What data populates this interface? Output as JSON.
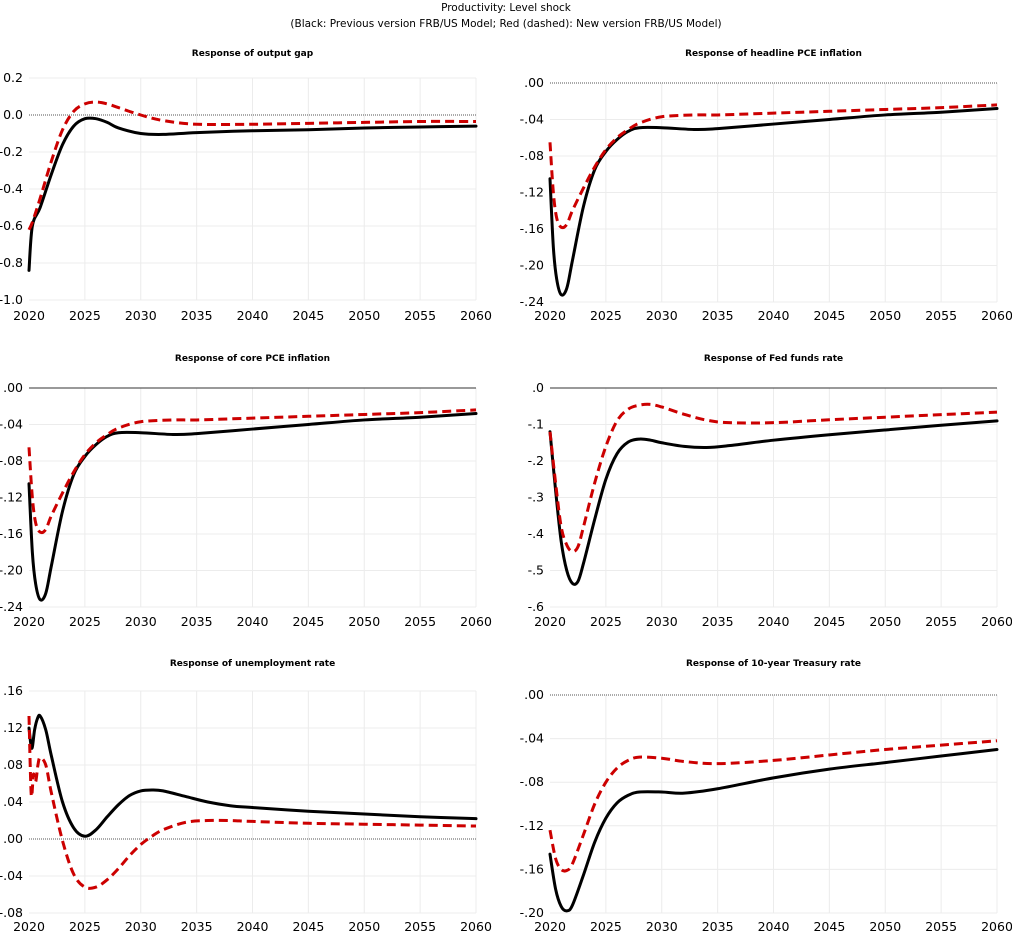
{
  "header": {
    "title": "Productivity: Level shock",
    "subtitle": "(Black: Previous version FRB/US Model; Red (dashed): New version FRB/US Model)"
  },
  "colors": {
    "previous": "#000000",
    "new": "#cc0000"
  },
  "chart_data": [
    {
      "type": "line",
      "title": "Response of output gap",
      "xlabel": "",
      "ylabel": "",
      "xlim": [
        2020,
        2060
      ],
      "ylim": [
        -1.0,
        0.2
      ],
      "xticks": [
        2020,
        2025,
        2030,
        2035,
        2040,
        2045,
        2050,
        2055,
        2060
      ],
      "yticks": [
        0.2,
        0.0,
        -0.2,
        -0.4,
        -0.6,
        -0.8,
        -1.0
      ],
      "ytick_labels": [
        "0.2",
        "0.0",
        "-0.2",
        "-0.4",
        "-0.6",
        "-0.8",
        "-1.0"
      ],
      "zero_style": "dotted",
      "grid": true,
      "series": [
        {
          "name": "Previous version FRB/US Model",
          "style": "solid-black",
          "x": [
            2020,
            2020.3,
            2021,
            2022,
            2023,
            2024,
            2025,
            2026,
            2027,
            2028,
            2030,
            2032,
            2035,
            2040,
            2045,
            2050,
            2055,
            2060
          ],
          "y": [
            -0.84,
            -0.6,
            -0.5,
            -0.32,
            -0.16,
            -0.06,
            -0.02,
            -0.02,
            -0.04,
            -0.07,
            -0.1,
            -0.105,
            -0.095,
            -0.085,
            -0.08,
            -0.07,
            -0.065,
            -0.06
          ]
        },
        {
          "name": "New version FRB/US Model",
          "style": "dashed-red",
          "x": [
            2020,
            2020.3,
            2021,
            2022,
            2023,
            2024,
            2025,
            2026,
            2027,
            2028,
            2030,
            2032,
            2035,
            2040,
            2045,
            2050,
            2055,
            2060
          ],
          "y": [
            -0.62,
            -0.58,
            -0.45,
            -0.25,
            -0.08,
            0.02,
            0.06,
            0.07,
            0.06,
            0.04,
            0.0,
            -0.03,
            -0.05,
            -0.05,
            -0.045,
            -0.04,
            -0.035,
            -0.035
          ]
        }
      ]
    },
    {
      "type": "line",
      "title": "Response of headline PCE inflation",
      "xlabel": "",
      "ylabel": "",
      "xlim": [
        2020,
        2060
      ],
      "ylim": [
        -0.24,
        0.0
      ],
      "xticks": [
        2020,
        2025,
        2030,
        2035,
        2040,
        2045,
        2050,
        2055,
        2060
      ],
      "yticks": [
        0.0,
        -0.04,
        -0.08,
        -0.12,
        -0.16,
        -0.2,
        -0.24
      ],
      "ytick_labels": [
        ".00",
        "-.04",
        "-.08",
        "-.12",
        "-.16",
        "-.20",
        "-.24"
      ],
      "zero_style": "dotted",
      "grid": true,
      "series": [
        {
          "name": "Previous version FRB/US Model",
          "style": "solid-black",
          "x": [
            2020,
            2020.3,
            2020.6,
            2021,
            2021.5,
            2022,
            2023,
            2024,
            2025,
            2026,
            2027,
            2028,
            2030,
            2033,
            2035,
            2040,
            2045,
            2050,
            2055,
            2060
          ],
          "y": [
            -0.105,
            -0.18,
            -0.215,
            -0.232,
            -0.225,
            -0.195,
            -0.135,
            -0.095,
            -0.075,
            -0.062,
            -0.053,
            -0.049,
            -0.049,
            -0.051,
            -0.05,
            -0.045,
            -0.04,
            -0.035,
            -0.032,
            -0.028
          ]
        },
        {
          "name": "New version FRB/US Model",
          "style": "dashed-red",
          "x": [
            2020,
            2020.3,
            2020.6,
            2021,
            2021.5,
            2022,
            2023,
            2024,
            2025,
            2026,
            2027,
            2028,
            2030,
            2033,
            2035,
            2040,
            2045,
            2050,
            2055,
            2060
          ],
          "y": [
            -0.065,
            -0.12,
            -0.148,
            -0.158,
            -0.155,
            -0.14,
            -0.115,
            -0.092,
            -0.073,
            -0.06,
            -0.051,
            -0.044,
            -0.037,
            -0.035,
            -0.035,
            -0.033,
            -0.031,
            -0.029,
            -0.027,
            -0.024
          ]
        }
      ]
    },
    {
      "type": "line",
      "title": "Response of core PCE inflation",
      "xlabel": "",
      "ylabel": "",
      "xlim": [
        2020,
        2060
      ],
      "ylim": [
        -0.24,
        0.0
      ],
      "xticks": [
        2020,
        2025,
        2030,
        2035,
        2040,
        2045,
        2050,
        2055,
        2060
      ],
      "yticks": [
        0.0,
        -0.04,
        -0.08,
        -0.12,
        -0.16,
        -0.2,
        -0.24
      ],
      "ytick_labels": [
        ".00",
        "-.04",
        "-.08",
        "-.12",
        "-.16",
        "-.20",
        "-.24"
      ],
      "zero_style": "solid",
      "grid": true,
      "series": [
        {
          "name": "Previous version FRB/US Model",
          "style": "solid-black",
          "x": [
            2020,
            2020.3,
            2020.6,
            2021,
            2021.5,
            2022,
            2023,
            2024,
            2025,
            2026,
            2027,
            2028,
            2030,
            2033,
            2035,
            2040,
            2045,
            2050,
            2055,
            2060
          ],
          "y": [
            -0.105,
            -0.18,
            -0.215,
            -0.232,
            -0.225,
            -0.195,
            -0.135,
            -0.095,
            -0.075,
            -0.062,
            -0.053,
            -0.049,
            -0.049,
            -0.051,
            -0.05,
            -0.045,
            -0.04,
            -0.035,
            -0.032,
            -0.028
          ]
        },
        {
          "name": "New version FRB/US Model",
          "style": "dashed-red",
          "x": [
            2020,
            2020.3,
            2020.6,
            2021,
            2021.5,
            2022,
            2023,
            2024,
            2025,
            2026,
            2027,
            2028,
            2030,
            2033,
            2035,
            2040,
            2045,
            2050,
            2055,
            2060
          ],
          "y": [
            -0.065,
            -0.12,
            -0.148,
            -0.158,
            -0.155,
            -0.14,
            -0.115,
            -0.092,
            -0.073,
            -0.06,
            -0.051,
            -0.044,
            -0.037,
            -0.035,
            -0.035,
            -0.033,
            -0.031,
            -0.029,
            -0.027,
            -0.024
          ]
        }
      ]
    },
    {
      "type": "line",
      "title": "Response of Fed funds rate",
      "xlabel": "",
      "ylabel": "",
      "xlim": [
        2020,
        2060
      ],
      "ylim": [
        -0.6,
        0.0
      ],
      "xticks": [
        2020,
        2025,
        2030,
        2035,
        2040,
        2045,
        2050,
        2055,
        2060
      ],
      "yticks": [
        0.0,
        -0.1,
        -0.2,
        -0.3,
        -0.4,
        -0.5,
        -0.6
      ],
      "ytick_labels": [
        ".0",
        "-.1",
        "-.2",
        "-.3",
        "-.4",
        "-.5",
        "-.6"
      ],
      "zero_style": "solid",
      "grid": true,
      "series": [
        {
          "name": "Previous version FRB/US Model",
          "style": "solid-black",
          "x": [
            2020,
            2020.5,
            2021,
            2021.5,
            2022,
            2022.5,
            2023,
            2024,
            2025,
            2026,
            2027,
            2028,
            2029,
            2030,
            2032,
            2034,
            2036,
            2040,
            2045,
            2050,
            2055,
            2060
          ],
          "y": [
            -0.12,
            -0.28,
            -0.42,
            -0.5,
            -0.535,
            -0.53,
            -0.48,
            -0.36,
            -0.25,
            -0.18,
            -0.148,
            -0.14,
            -0.143,
            -0.15,
            -0.16,
            -0.163,
            -0.158,
            -0.143,
            -0.128,
            -0.115,
            -0.102,
            -0.09
          ]
        },
        {
          "name": "New version FRB/US Model",
          "style": "dashed-red",
          "x": [
            2020,
            2020.5,
            2021,
            2021.5,
            2022,
            2022.5,
            2023,
            2024,
            2025,
            2026,
            2027,
            2028,
            2029,
            2030,
            2032,
            2034,
            2036,
            2040,
            2045,
            2050,
            2055,
            2060
          ],
          "y": [
            -0.12,
            -0.26,
            -0.38,
            -0.43,
            -0.448,
            -0.435,
            -0.38,
            -0.26,
            -0.16,
            -0.09,
            -0.058,
            -0.047,
            -0.045,
            -0.052,
            -0.072,
            -0.088,
            -0.095,
            -0.095,
            -0.087,
            -0.08,
            -0.073,
            -0.066
          ]
        }
      ]
    },
    {
      "type": "line",
      "title": "Response of unemployment rate",
      "xlabel": "",
      "ylabel": "",
      "xlim": [
        2020,
        2060
      ],
      "ylim": [
        -0.08,
        0.16
      ],
      "xticks": [
        2020,
        2025,
        2030,
        2035,
        2040,
        2045,
        2050,
        2055,
        2060
      ],
      "yticks": [
        0.16,
        0.12,
        0.08,
        0.04,
        0.0,
        -0.04,
        -0.08
      ],
      "ytick_labels": [
        ".16",
        ".12",
        ".08",
        ".04",
        ".00",
        "-.04",
        "-.08"
      ],
      "zero_style": "dotted",
      "grid": true,
      "series": [
        {
          "name": "Previous version FRB/US Model",
          "style": "solid-black",
          "x": [
            2020,
            2020.25,
            2020.5,
            2020.75,
            2021,
            2021.5,
            2022,
            2023,
            2024,
            2025,
            2026,
            2027,
            2028,
            2029,
            2030,
            2031,
            2032,
            2034,
            2036,
            2038,
            2040,
            2045,
            2050,
            2055,
            2060
          ],
          "y": [
            0.12,
            0.098,
            0.118,
            0.13,
            0.133,
            0.118,
            0.09,
            0.04,
            0.012,
            0.003,
            0.01,
            0.024,
            0.037,
            0.047,
            0.052,
            0.053,
            0.052,
            0.046,
            0.04,
            0.036,
            0.034,
            0.03,
            0.027,
            0.024,
            0.022
          ]
        },
        {
          "name": "New version FRB/US Model",
          "style": "dashed-red",
          "x": [
            2020,
            2020.2,
            2020.4,
            2020.6,
            2020.8,
            2021,
            2021.5,
            2022,
            2023,
            2024,
            2025,
            2026,
            2027,
            2028,
            2029,
            2030,
            2031,
            2032,
            2034,
            2036,
            2038,
            2040,
            2045,
            2050,
            2055,
            2060
          ],
          "y": [
            0.133,
            0.048,
            0.07,
            0.062,
            0.08,
            0.088,
            0.08,
            0.05,
            -0.002,
            -0.038,
            -0.052,
            -0.052,
            -0.044,
            -0.032,
            -0.018,
            -0.006,
            0.003,
            0.01,
            0.018,
            0.02,
            0.02,
            0.019,
            0.017,
            0.016,
            0.015,
            0.014
          ]
        }
      ]
    },
    {
      "type": "line",
      "title": "Response of 10-year Treasury rate",
      "xlabel": "",
      "ylabel": "",
      "xlim": [
        2020,
        2060
      ],
      "ylim": [
        -0.2,
        0.0
      ],
      "xticks": [
        2020,
        2025,
        2030,
        2035,
        2040,
        2045,
        2050,
        2055,
        2060
      ],
      "yticks": [
        0.0,
        -0.04,
        -0.08,
        -0.12,
        -0.16,
        -0.2
      ],
      "ytick_labels": [
        ".00",
        "-.04",
        "-.08",
        "-.12",
        "-.16",
        "-.20"
      ],
      "zero_style": "dotted",
      "grid": true,
      "series": [
        {
          "name": "Previous version FRB/US Model",
          "style": "solid-black",
          "x": [
            2020,
            2020.5,
            2021,
            2021.5,
            2022,
            2023,
            2024,
            2025,
            2026,
            2027,
            2028,
            2030,
            2032,
            2035,
            2040,
            2045,
            2050,
            2055,
            2060
          ],
          "y": [
            -0.146,
            -0.178,
            -0.194,
            -0.198,
            -0.193,
            -0.165,
            -0.135,
            -0.113,
            -0.099,
            -0.092,
            -0.089,
            -0.089,
            -0.09,
            -0.086,
            -0.076,
            -0.068,
            -0.062,
            -0.056,
            -0.05
          ]
        },
        {
          "name": "New version FRB/US Model",
          "style": "dashed-red",
          "x": [
            2020,
            2020.5,
            2021,
            2021.5,
            2022,
            2023,
            2024,
            2025,
            2026,
            2027,
            2028,
            2030,
            2032,
            2035,
            2040,
            2045,
            2050,
            2055,
            2060
          ],
          "y": [
            -0.124,
            -0.15,
            -0.16,
            -0.161,
            -0.155,
            -0.128,
            -0.1,
            -0.08,
            -0.067,
            -0.06,
            -0.057,
            -0.058,
            -0.061,
            -0.063,
            -0.06,
            -0.055,
            -0.05,
            -0.046,
            -0.042
          ]
        }
      ]
    }
  ]
}
